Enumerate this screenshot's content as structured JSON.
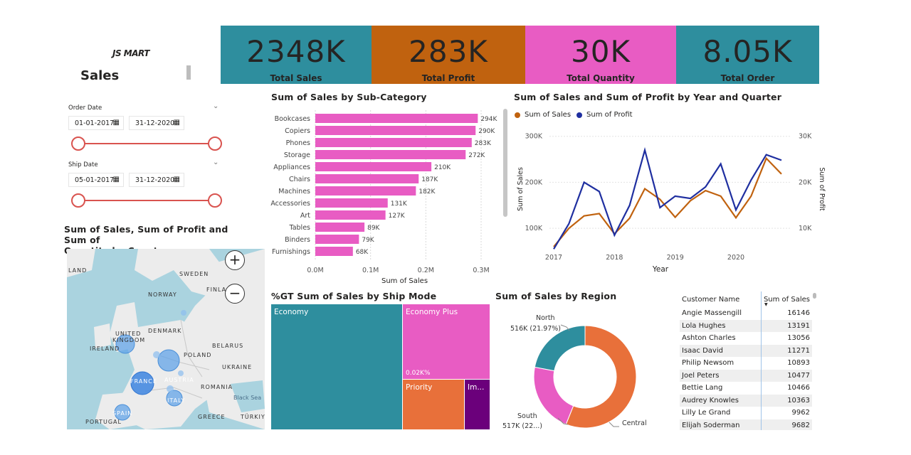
{
  "logo": {
    "text": "JS MART"
  },
  "report_title": "Sales",
  "kpis": [
    {
      "value": "2348K",
      "label": "Total Sales",
      "color": "#2E8E9E"
    },
    {
      "value": "283K",
      "label": "Total Profit",
      "color": "#C0620F"
    },
    {
      "value": "30K",
      "label": "Total Quantity",
      "color": "#E85CC3"
    },
    {
      "value": "8.05K",
      "label": "Total Order",
      "color": "#2E8E9E"
    }
  ],
  "filters": {
    "order_date": {
      "label": "Order Date",
      "from": "01-01-2017",
      "to": "31-12-2020"
    },
    "ship_date": {
      "label": "Ship Date",
      "from": "05-01-2017",
      "to": "31-12-2020"
    }
  },
  "map": {
    "title_line1": "Sum of Sales, Sum of Profit and Sum of",
    "title_line2": "Quantity by Country",
    "zoom_in": "+",
    "zoom_out": "−",
    "labels": [
      "LAND",
      "SWEDEN",
      "FINLA",
      "NORWAY",
      "UNITED",
      "KINGDOM",
      "DENMARK",
      "IRELAND",
      "BELARUS",
      "POLAND",
      "UKRAINE",
      "FRANCE",
      "AUSTRIA",
      "ROMANIA",
      "ITALY",
      "Black Sea",
      "SPAIN",
      "PORTUGAL",
      "GREECE",
      "TÜRKIY"
    ]
  },
  "subcat_chart": {
    "title": "Sum of Sales by Sub-Category",
    "xlabel": "Sum of Sales",
    "xticks": [
      "0.0M",
      "0.1M",
      "0.2M",
      "0.3M"
    ]
  },
  "line_chart": {
    "title": "Sum of Sales and Sum of Profit by Year and Quarter",
    "legend": [
      {
        "name": "Sum of Sales",
        "color": "#C0620F"
      },
      {
        "name": "Sum of Profit",
        "color": "#1F2FA0"
      }
    ],
    "ylabel_left": "Sum of Sales",
    "ylabel_right": "Sum of Profit",
    "xlabel": "Year",
    "yticks_left": [
      "300K",
      "200K",
      "100K"
    ],
    "yticks_right": [
      "30K",
      "20K",
      "10K"
    ],
    "xticks": [
      "2017",
      "2018",
      "2019",
      "2020"
    ]
  },
  "treemap": {
    "title": "%GT Sum of Sales by Ship Mode",
    "tiles": [
      {
        "label": "Economy",
        "color": "#2E8E9E"
      },
      {
        "label": "Economy Plus",
        "color": "#E85CC3",
        "sublabel": "0.02K%"
      },
      {
        "label": "Priority",
        "color": "#E8703A"
      },
      {
        "label": "Im...",
        "color": "#6B007B"
      }
    ]
  },
  "donut": {
    "title": "Sum of Sales by Region",
    "labels": [
      {
        "name": "North",
        "value": "516K (21.97%)"
      },
      {
        "name": "South",
        "value": "517K (22...)"
      },
      {
        "name": "Central",
        "value": ""
      }
    ]
  },
  "customers": {
    "col1": "Customer Name",
    "col2": "Sum of Sales",
    "rows": [
      {
        "name": "Angie Massengill",
        "sales": "16146"
      },
      {
        "name": "Lola Hughes",
        "sales": "13191"
      },
      {
        "name": "Ashton Charles",
        "sales": "13056"
      },
      {
        "name": "Isaac David",
        "sales": "11271"
      },
      {
        "name": "Philip Newsom",
        "sales": "10893"
      },
      {
        "name": "Joel Peters",
        "sales": "10477"
      },
      {
        "name": "Bettie Lang",
        "sales": "10466"
      },
      {
        "name": "Audrey Knowles",
        "sales": "10363"
      },
      {
        "name": "Lilly Le Grand",
        "sales": "9962"
      },
      {
        "name": "Elijah Soderman",
        "sales": "9682"
      }
    ]
  },
  "chart_data": [
    {
      "type": "bar",
      "orientation": "horizontal",
      "title": "Sum of Sales by Sub-Category",
      "xlabel": "Sum of Sales",
      "xlim": [
        0,
        300000
      ],
      "color": "#E85CC3",
      "categories": [
        "Bookcases",
        "Copiers",
        "Phones",
        "Storage",
        "Appliances",
        "Chairs",
        "Machines",
        "Accessories",
        "Art",
        "Tables",
        "Binders",
        "Furnishings"
      ],
      "values": [
        294000,
        290000,
        283000,
        272000,
        210000,
        187000,
        182000,
        131000,
        127000,
        89000,
        79000,
        68000
      ],
      "data_labels": [
        "294K",
        "290K",
        "283K",
        "272K",
        "210K",
        "187K",
        "182K",
        "131K",
        "127K",
        "89K",
        "79K",
        "68K"
      ]
    },
    {
      "type": "line",
      "title": "Sum of Sales and Sum of Profit by Year and Quarter",
      "xlabel": "Year",
      "ylabel": "Sum of Sales",
      "ylabel_right": "Sum of Profit",
      "x": [
        "2017 Q1",
        "2017 Q2",
        "2017 Q3",
        "2017 Q4",
        "2018 Q1",
        "2018 Q2",
        "2018 Q3",
        "2018 Q4",
        "2019 Q1",
        "2019 Q2",
        "2019 Q3",
        "2019 Q4",
        "2020 Q1",
        "2020 Q2",
        "2020 Q3",
        "2020 Q4"
      ],
      "ylim": [
        40000,
        315000
      ],
      "ylim_right": [
        4000,
        31500
      ],
      "series": [
        {
          "name": "Sum of Sales",
          "axis": "left",
          "color": "#C0620F",
          "values": [
            60000,
            100000,
            127000,
            132000,
            88000,
            122000,
            186000,
            163000,
            124000,
            160000,
            182000,
            170000,
            123000,
            170000,
            252000,
            218000
          ]
        },
        {
          "name": "Sum of Profit",
          "axis": "right",
          "color": "#1F2FA0",
          "values": [
            5500,
            11000,
            20000,
            18000,
            8500,
            15000,
            27000,
            14500,
            17000,
            16500,
            19000,
            24000,
            14000,
            20500,
            26000,
            24800
          ]
        }
      ]
    },
    {
      "type": "treemap",
      "title": "%GT Sum of Sales by Ship Mode",
      "categories": [
        "Economy",
        "Economy Plus",
        "Priority",
        "Im..."
      ],
      "values": [
        0.59,
        0.21,
        0.14,
        0.06
      ]
    },
    {
      "type": "pie",
      "variant": "donut",
      "title": "Sum of Sales by Region",
      "categories": [
        "Central",
        "South",
        "North"
      ],
      "values": [
        0.5606,
        0.2197,
        0.2197
      ],
      "colors": [
        "#E8703A",
        "#E85CC3",
        "#2E8E9E"
      ]
    }
  ]
}
